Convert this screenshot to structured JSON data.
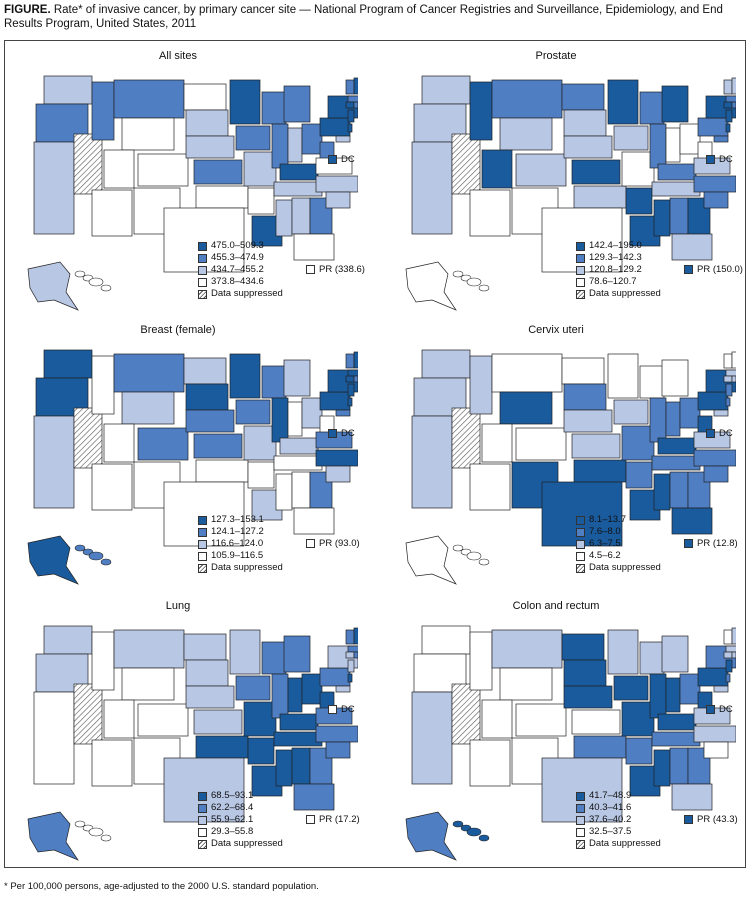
{
  "header": {
    "title_bold": "FIGURE.",
    "title_rest": "Rate* of invasive cancer, by primary cancer site — National Program of Cancer Registries and Surveillance, Epidemiology, and End Results Program, United States, 2011"
  },
  "colors": {
    "c1": "#1a5b9e",
    "c2": "#4f7ec2",
    "c3": "#b8c7e4",
    "c4": "#ffffff",
    "stroke": "#222222"
  },
  "panels": [
    {
      "title": "All sites",
      "legend": [
        "475.0–509.3",
        "455.3–474.9",
        "434.7–455.2",
        "373.8–434.6",
        "Data suppressed"
      ],
      "pr_label": "PR (338.6)",
      "pr_class": 4,
      "dc_label": "DC",
      "dc_class": 1
    },
    {
      "title": "Prostate",
      "legend": [
        "142.4–195.0",
        "129.3–142.3",
        "120.8–129.2",
        "78.6–120.7",
        "Data suppressed"
      ],
      "pr_label": "PR (150.0)",
      "pr_class": 1,
      "dc_label": "DC",
      "dc_class": 1
    },
    {
      "title": "Breast (female)",
      "legend": [
        "127.3–153.1",
        "124.1–127.2",
        "116.6–124.0",
        "105.9–116.5",
        "Data suppressed"
      ],
      "pr_label": "PR (93.0)",
      "pr_class": 4,
      "dc_label": "DC",
      "dc_class": 1
    },
    {
      "title": "Cervix uteri",
      "legend": [
        "8.1–13.7",
        "7.6–8.0",
        "6.3–7.5",
        "4.5–6.2",
        "Data suppressed"
      ],
      "pr_label": "PR (12.8)",
      "pr_class": 1,
      "dc_label": "DC",
      "dc_class": 1
    },
    {
      "title": "Lung",
      "legend": [
        "68.5–93.1",
        "62.2–68.4",
        "55.9–62.1",
        "29.3–55.8",
        "Data suppressed"
      ],
      "pr_label": "PR (17.2)",
      "pr_class": 4,
      "dc_label": "DC",
      "dc_class": 4
    },
    {
      "title": "Colon and rectum",
      "legend": [
        "41.7–48.9",
        "40.3–41.6",
        "37.6–40.2",
        "32.5–37.5",
        "Data suppressed"
      ],
      "pr_label": "PR (43.3)",
      "pr_class": 1,
      "dc_label": "DC",
      "dc_class": 1
    }
  ],
  "footnote": "* Per 100,000 persons, age-adjusted to the 2000 U.S. standard population."
}
